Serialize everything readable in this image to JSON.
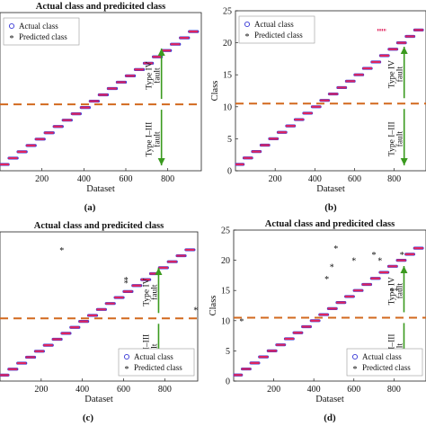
{
  "panels": [
    {
      "panel_label": "(a)",
      "title": "Actual class and predicited class",
      "xlabel": "Dataset",
      "ylabel": "",
      "legend": [
        "Actual class",
        "Predicted class"
      ],
      "legend_position": "top-left",
      "annotation_upper": [
        "Type IV",
        "fault"
      ],
      "annotation_lower": [
        "Type I–III",
        "fault"
      ]
    },
    {
      "panel_label": "(b)",
      "title": "",
      "xlabel": "Dataset",
      "ylabel": "Class",
      "legend": [
        "Actual class",
        "Predicted class"
      ],
      "legend_position": "top-left",
      "annotation_upper": [
        "Type IV",
        "fault"
      ],
      "annotation_lower": [
        "Type I–III",
        "fault"
      ]
    },
    {
      "panel_label": "(c)",
      "title": "Actual class and predicited class",
      "xlabel": "Dataset",
      "ylabel": "",
      "legend": [
        "Actual class",
        "Predicted class"
      ],
      "legend_position": "bottom-right",
      "annotation_upper": [
        "Type IV",
        "fault"
      ],
      "annotation_lower": [
        "Type I–III",
        "fault"
      ]
    },
    {
      "panel_label": "(d)",
      "title": "Actual class and predicited class",
      "xlabel": "Dataset",
      "ylabel": "Class",
      "legend": [
        "Actual class",
        "Predicted class"
      ],
      "legend_position": "bottom-right",
      "annotation_upper": [
        "Type IV",
        "fault"
      ],
      "annotation_lower": [
        "Type I–III",
        "fault"
      ]
    }
  ],
  "colors": {
    "actual": "#3a3ad6",
    "predicted": "#e0245e",
    "threshold": "#d2691e",
    "arrow": "#3a9a1e"
  },
  "chart_data": [
    {
      "type": "scatter",
      "xlim": [
        0,
        960
      ],
      "ylim": [
        0,
        25
      ],
      "xticks": [
        200,
        400,
        600,
        800
      ],
      "yticks": [],
      "classes": 22,
      "samples_per_class": 43,
      "threshold_y": 10.5,
      "misclassified": []
    },
    {
      "type": "scatter",
      "xlim": [
        0,
        960
      ],
      "ylim": [
        0,
        25
      ],
      "xticks": [
        200,
        400,
        600,
        800
      ],
      "yticks": [
        0,
        5,
        10,
        15,
        20,
        25
      ],
      "classes": 22,
      "samples_per_class": 43,
      "threshold_y": 10.5,
      "misclassified": [
        {
          "x_start": 715,
          "x_end": 760,
          "y": 22
        }
      ]
    },
    {
      "type": "scatter",
      "xlim": [
        0,
        960
      ],
      "ylim": [
        0,
        25
      ],
      "xticks": [
        200,
        400,
        600,
        800
      ],
      "yticks": [],
      "classes": 22,
      "samples_per_class": 43,
      "threshold_y": 10.5,
      "misclassified": [
        {
          "x": 300,
          "y": 22
        },
        {
          "x": 612,
          "y": 17
        },
        {
          "x": 612,
          "y": 16.5
        },
        {
          "x": 950,
          "y": 12
        }
      ]
    },
    {
      "type": "scatter",
      "xlim": [
        0,
        960
      ],
      "ylim": [
        0,
        25
      ],
      "xticks": [
        200,
        400,
        600,
        800
      ],
      "yticks": [
        0,
        5,
        10,
        15,
        20,
        25
      ],
      "classes": 22,
      "samples_per_class": 43,
      "threshold_y": 10.5,
      "misclassified": [
        {
          "x": 40,
          "y": 10
        },
        {
          "x": 465,
          "y": 17
        },
        {
          "x": 490,
          "y": 19
        },
        {
          "x": 510,
          "y": 22
        },
        {
          "x": 600,
          "y": 20
        },
        {
          "x": 730,
          "y": 20
        },
        {
          "x": 700,
          "y": 21
        },
        {
          "x": 790,
          "y": 15
        },
        {
          "x": 815,
          "y": 15
        },
        {
          "x": 840,
          "y": 21
        }
      ]
    }
  ]
}
